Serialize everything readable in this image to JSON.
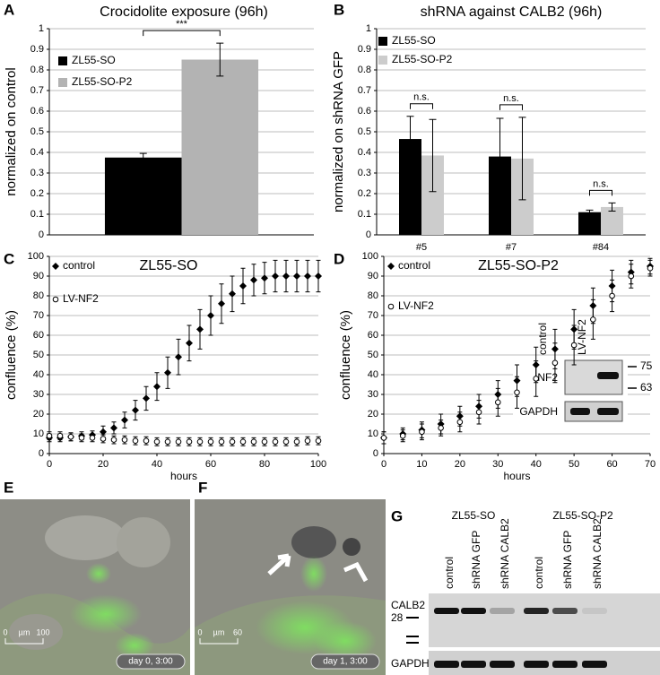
{
  "chart_data": [
    {
      "panel_label": "A",
      "type": "bar",
      "title": "Crocidolite exposure (96h)",
      "y_label": "normalized on control",
      "categories": [
        null
      ],
      "series": [
        {
          "name": "ZL55-SO",
          "color": "#000000",
          "values": [
            0.375
          ],
          "errors": [
            0.02
          ]
        },
        {
          "name": "ZL55-SO-P2",
          "color": "#b3b3b3",
          "values": [
            0.85
          ],
          "errors": [
            0.08
          ]
        }
      ],
      "significance": [
        "***"
      ],
      "ylim": [
        0,
        1
      ],
      "yticks": [
        0,
        0.1,
        0.2,
        0.3,
        0.4,
        0.5,
        0.6,
        0.7,
        0.8,
        0.9,
        1
      ],
      "grid": true,
      "legend": "left"
    },
    {
      "panel_label": "B",
      "type": "bar",
      "title": "shRNA against CALB2 (96h)",
      "y_label": "normalized on shRNA GFP",
      "categories": [
        "#5",
        "#7",
        "#84"
      ],
      "series": [
        {
          "name": "ZL55-SO",
          "color": "#000000",
          "values": [
            0.465,
            0.38,
            0.11
          ],
          "errors": [
            0.11,
            0.185,
            0.01
          ]
        },
        {
          "name": "ZL55-SO-P2",
          "color": "#cccccc",
          "values": [
            0.385,
            0.37,
            0.135
          ],
          "errors": [
            0.175,
            0.2,
            0.02
          ]
        }
      ],
      "significance": [
        "n.s.",
        "n.s.",
        "n.s."
      ],
      "ylim": [
        0,
        1
      ],
      "yticks": [
        0,
        0.1,
        0.2,
        0.3,
        0.4,
        0.5,
        0.6,
        0.7,
        0.8,
        0.9,
        1
      ],
      "grid": true,
      "legend": "top-left"
    },
    {
      "panel_label": "C",
      "type": "scatter",
      "title": "ZL55-SO",
      "x_label": "hours",
      "y_label": "confluence (%)",
      "x": [
        0,
        4,
        8,
        12,
        16,
        20,
        24,
        28,
        32,
        36,
        40,
        44,
        48,
        52,
        56,
        60,
        64,
        68,
        72,
        76,
        80,
        84,
        88,
        92,
        96,
        100
      ],
      "series": [
        {
          "name": "control",
          "color": "#000000",
          "marker": "diamond",
          "values": [
            8,
            8,
            8.5,
            9,
            9.5,
            11,
            13,
            17,
            22,
            28,
            34,
            41,
            49,
            56,
            63,
            70,
            76,
            81,
            85,
            88,
            89,
            90,
            90,
            90,
            90,
            90
          ],
          "errors": [
            2,
            2,
            2,
            2,
            2,
            3,
            3,
            4,
            5,
            6,
            7,
            8,
            9,
            9,
            10,
            10,
            10,
            9,
            9,
            8,
            8,
            8,
            8,
            8,
            8,
            8
          ]
        },
        {
          "name": "LV-NF2",
          "color": "#000000",
          "marker": "open-circle",
          "values": [
            9,
            9,
            8.5,
            8,
            8,
            7.5,
            7,
            7,
            6.5,
            6.5,
            6,
            6,
            6,
            6,
            6,
            6,
            6,
            6,
            6,
            6,
            6,
            6,
            6,
            6,
            6.5,
            6.5
          ],
          "errors": [
            2,
            2,
            2,
            2,
            2,
            2,
            2,
            2,
            2,
            2,
            2,
            2,
            2,
            2,
            2,
            2,
            2,
            2,
            2,
            2,
            2,
            2,
            2,
            2,
            2,
            2
          ]
        }
      ],
      "xlim": [
        0,
        100
      ],
      "xticks": [
        0,
        20,
        40,
        60,
        80,
        100
      ],
      "ylim": [
        0,
        100
      ],
      "yticks": [
        0,
        10,
        20,
        30,
        40,
        50,
        60,
        70,
        80,
        90,
        100
      ],
      "grid": true,
      "legend": "top-left"
    },
    {
      "panel_label": "D",
      "type": "scatter",
      "title": "ZL55-SO-P2",
      "x_label": "hours",
      "y_label": "confluence (%)",
      "x": [
        0,
        5,
        10,
        15,
        20,
        25,
        30,
        35,
        40,
        45,
        50,
        55,
        60,
        65,
        70
      ],
      "series": [
        {
          "name": "control",
          "color": "#000000",
          "marker": "diamond",
          "values": [
            8,
            10,
            12,
            15,
            19,
            24,
            30,
            37,
            45,
            53,
            63,
            75,
            85,
            92,
            95
          ],
          "errors": [
            3,
            3,
            4,
            5,
            5,
            6,
            7,
            8,
            9,
            10,
            10,
            9,
            8,
            6,
            4
          ]
        },
        {
          "name": "LV-NF2",
          "color": "#000000",
          "marker": "open-circle",
          "values": [
            8,
            9,
            11,
            13,
            16,
            21,
            26,
            31,
            38,
            46,
            55,
            68,
            80,
            90,
            94
          ],
          "errors": [
            3,
            3,
            4,
            4,
            5,
            6,
            7,
            8,
            9,
            10,
            10,
            10,
            8,
            6,
            4
          ]
        }
      ],
      "xlim": [
        0,
        70
      ],
      "xticks": [
        0,
        10,
        20,
        30,
        40,
        50,
        60,
        70
      ],
      "ylim": [
        0,
        100
      ],
      "yticks": [
        0,
        10,
        20,
        30,
        40,
        50,
        60,
        70,
        80,
        90,
        100
      ],
      "grid": true,
      "legend": "top-left",
      "inset": {
        "lanes": [
          "control",
          "LV-NF2"
        ],
        "rows": [
          "NF2",
          "GAPDH"
        ],
        "markers": [
          "75",
          "63"
        ]
      }
    }
  ],
  "image_panels": [
    {
      "panel_label": "E",
      "scale_bar": [
        "0",
        "µm",
        "100"
      ],
      "timestamp": "day 0, 3:00"
    },
    {
      "panel_label": "F",
      "scale_bar": [
        "0",
        "µm",
        "60"
      ],
      "timestamp": "day 1, 3:00"
    }
  ],
  "blot": {
    "panel_label": "G",
    "groups": [
      "ZL55-SO",
      "ZL55-SO-P2"
    ],
    "lanes": [
      "control",
      "shRNA GFP",
      "shRNA CALB2",
      "control",
      "shRNA GFP",
      "shRNA CALB2"
    ],
    "rows": [
      "CALB2",
      "GAPDH"
    ],
    "marker": "28"
  }
}
